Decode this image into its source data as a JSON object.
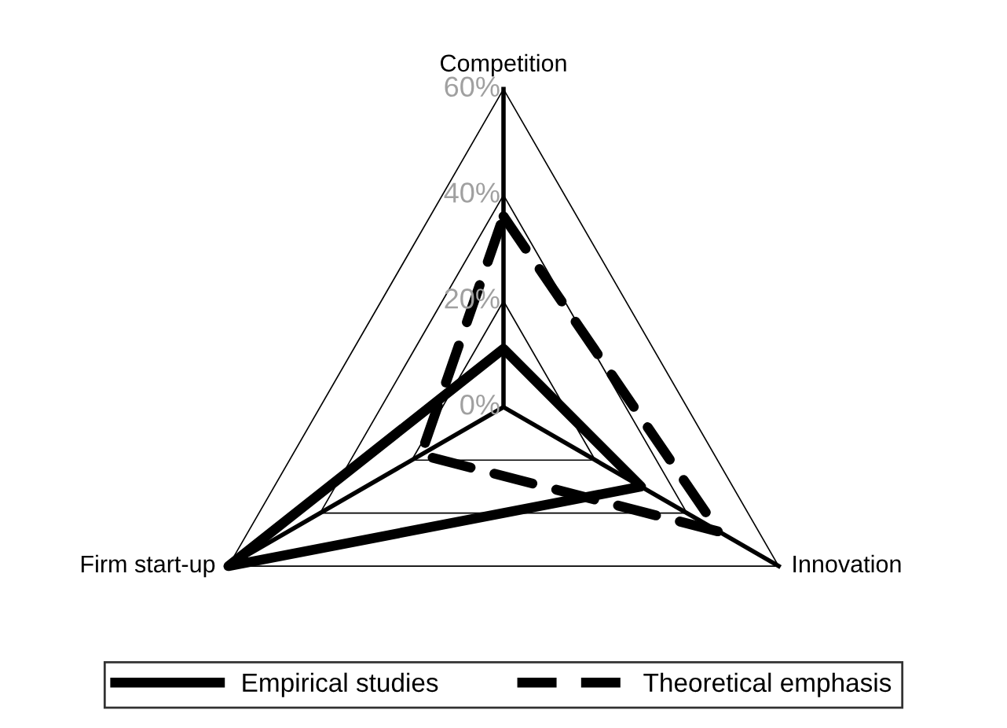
{
  "chart_data": {
    "type": "radar",
    "categories": [
      "Competition",
      "Innovation",
      "Firm start-up"
    ],
    "series": [
      {
        "name": "Empirical studies",
        "color": "#000000",
        "values": [
          11,
          30,
          60
        ],
        "line_style": "solid"
      },
      {
        "name": "Theoretical emphasis",
        "color": "#000000",
        "values": [
          36,
          47,
          18
        ],
        "line_style": "dashed"
      }
    ],
    "ylim": [
      0,
      60
    ],
    "yticks": [
      {
        "value": 0,
        "label": "0%"
      },
      {
        "value": 20,
        "label": "20%"
      },
      {
        "value": 40,
        "label": "40%"
      },
      {
        "value": 60,
        "label": "60%"
      }
    ],
    "grid": true,
    "legend": "bottom",
    "marker": "none"
  }
}
